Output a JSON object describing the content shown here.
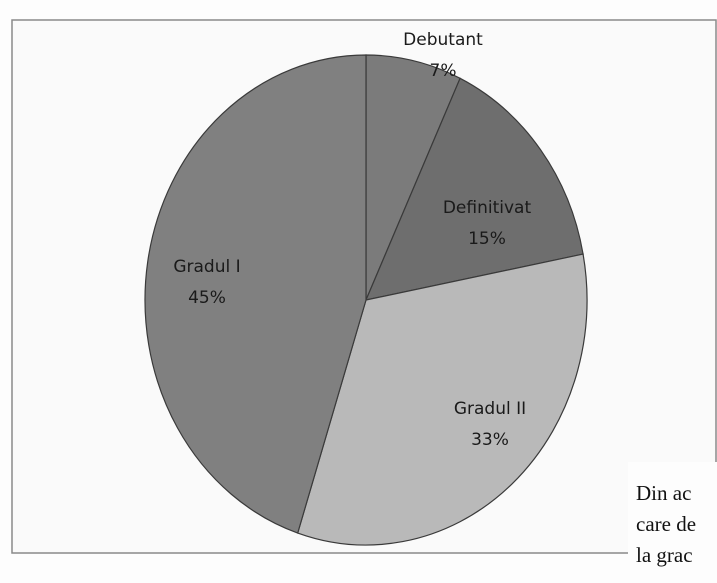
{
  "chart_data": {
    "type": "pie",
    "categories": [
      "Debutant",
      "Definitivat",
      "Gradul II",
      "Gradul I"
    ],
    "values": [
      7,
      15,
      33,
      45
    ],
    "value_labels": [
      "7%",
      "15%",
      "33%",
      "45%"
    ],
    "colors": [
      "#7b7b7b",
      "#6e6e6e",
      "#b9b9b9",
      "#808080"
    ]
  },
  "document_text": [
    "Din ac",
    "care de",
    "la grac"
  ]
}
